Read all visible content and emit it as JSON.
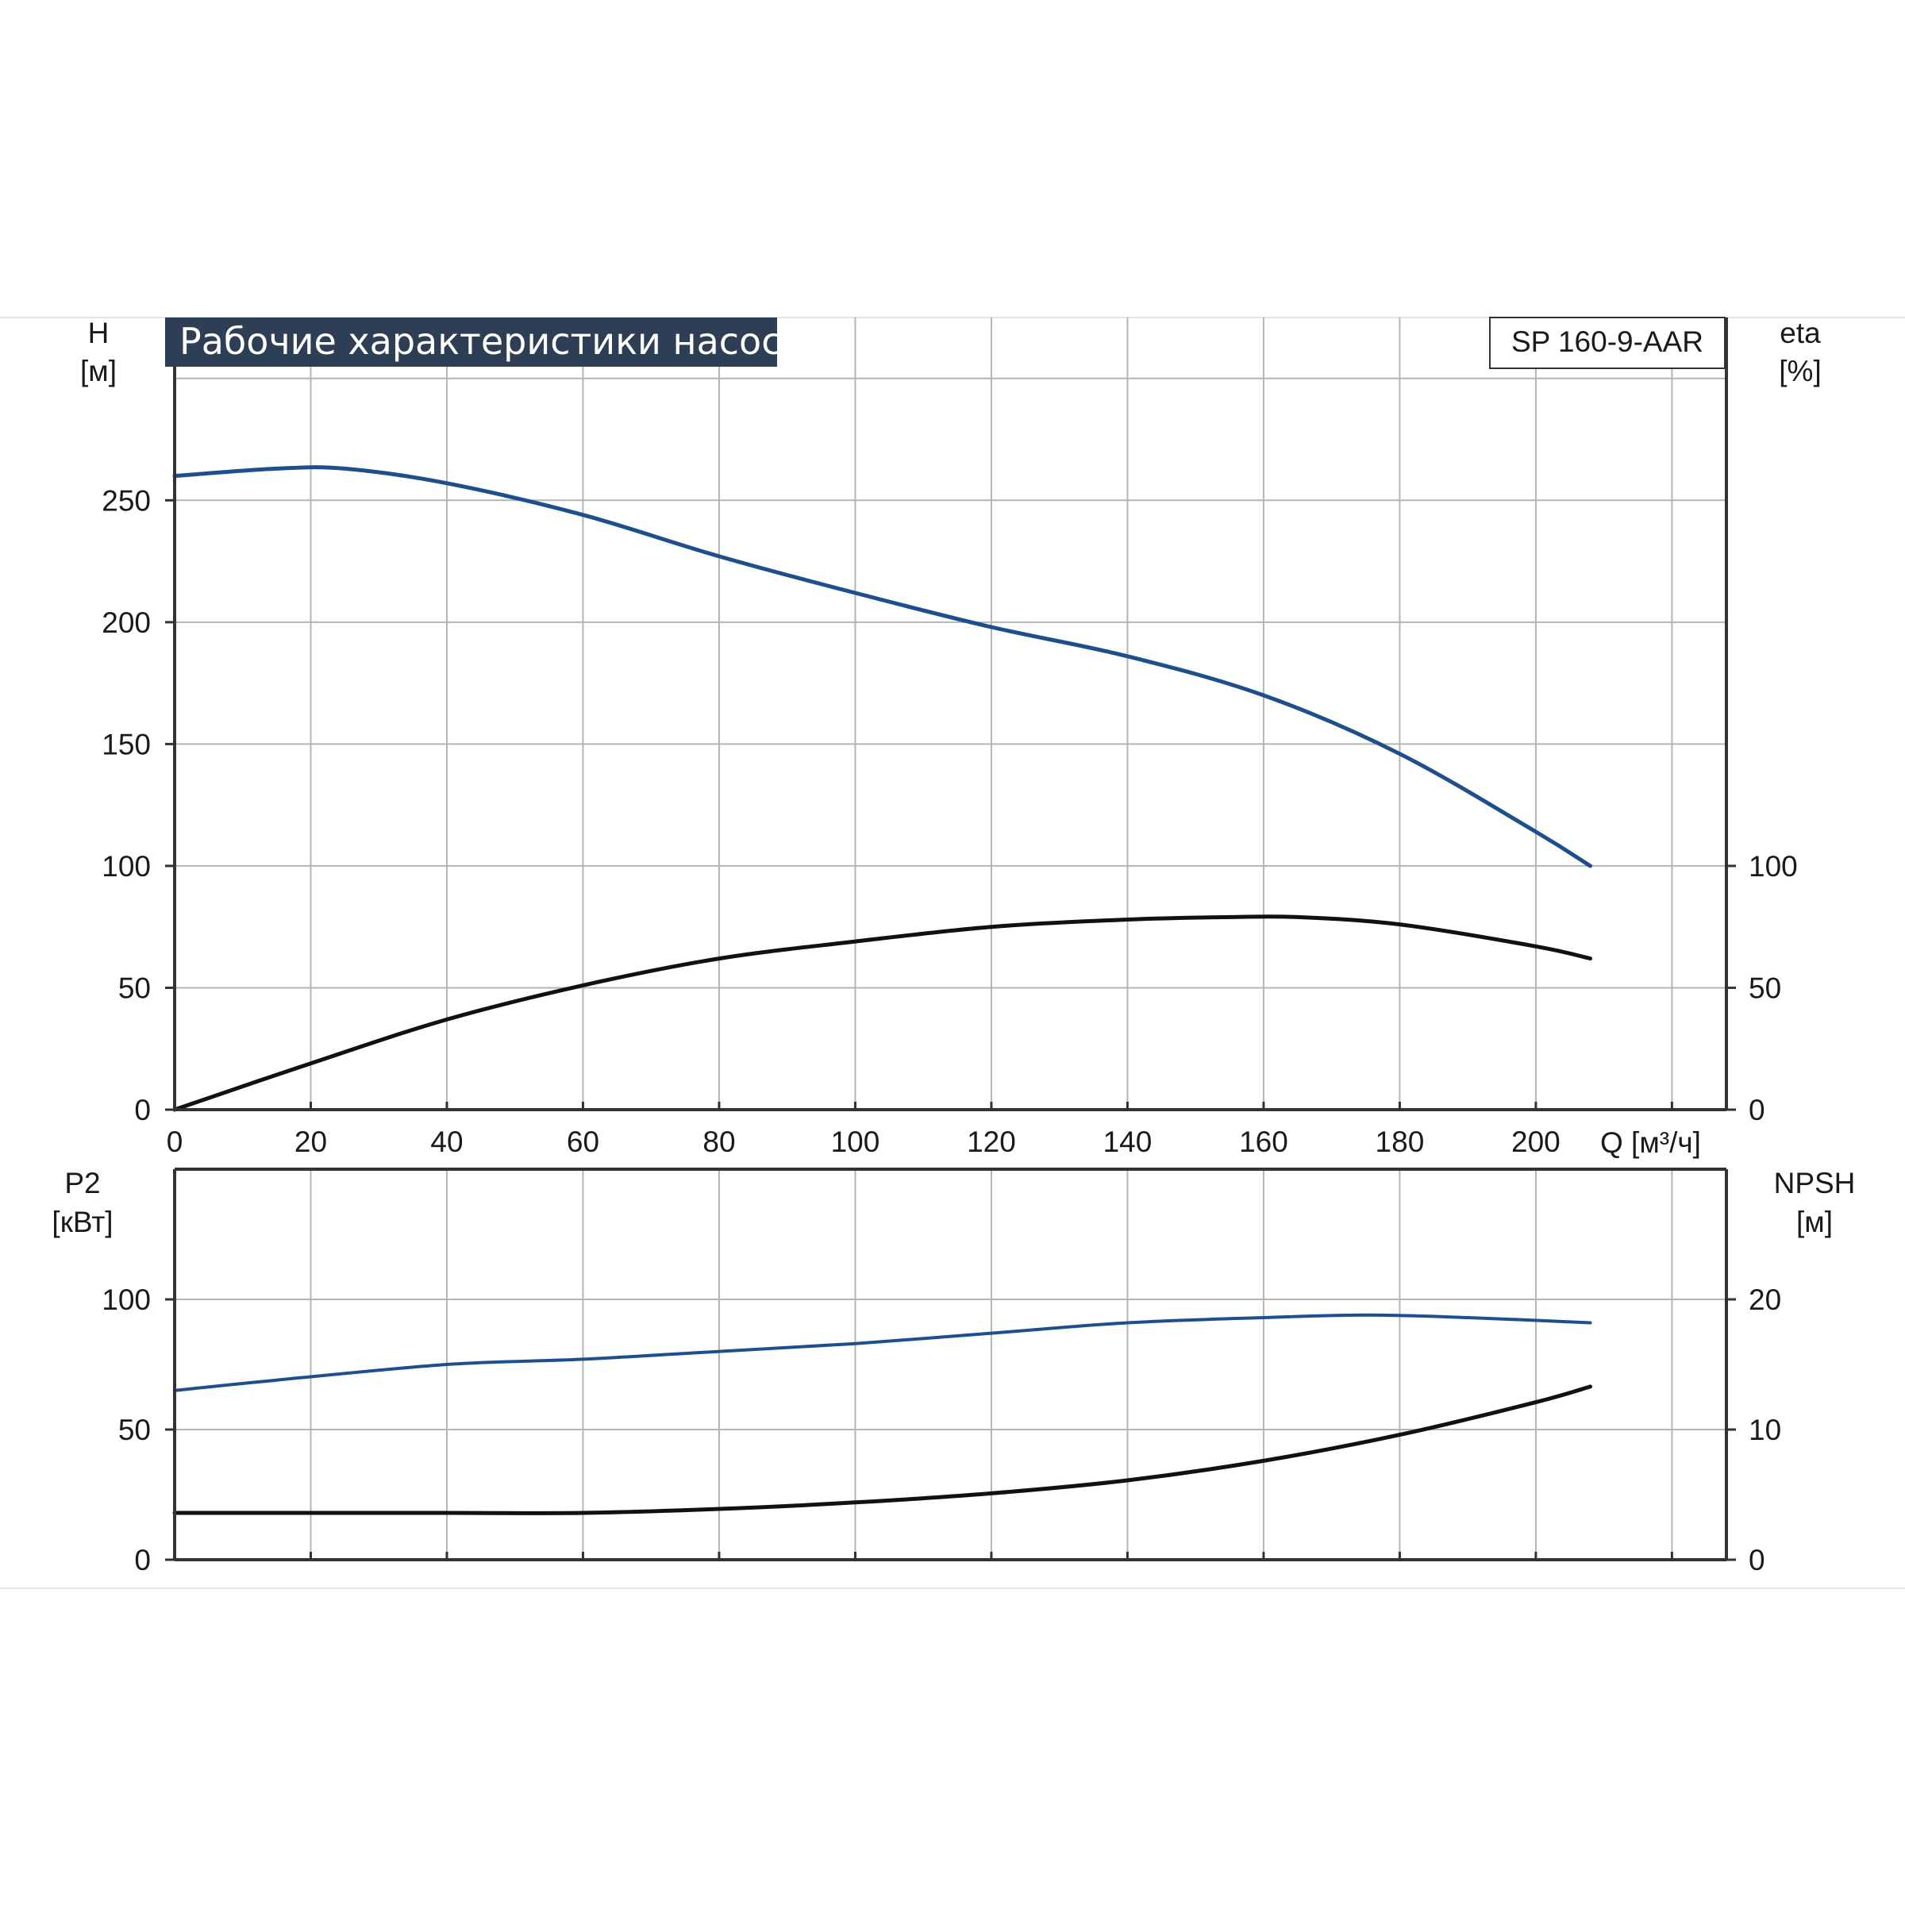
{
  "title": "Рабочие характеристики насоса",
  "model": "SP 160-9-AAR",
  "colors": {
    "title_bg": "#2e3e55",
    "grid": "#b4b4b4",
    "axis": "#333333",
    "blue_curve": "#1f4e8c",
    "black_curve": "#111111",
    "page_rule": "#e2e2e2"
  },
  "x_axis": {
    "label": "Q [м³/ч]",
    "range": [
      0,
      228
    ],
    "ticks": [
      0,
      20,
      40,
      60,
      80,
      100,
      120,
      140,
      160,
      180,
      200
    ]
  },
  "upper_chart": {
    "left_axis": {
      "label_line1": "H",
      "label_line2": "[м]",
      "range": [
        0,
        325
      ],
      "ticks": [
        0,
        50,
        100,
        150,
        200,
        250
      ]
    },
    "right_axis": {
      "label_line1": "eta",
      "label_line2": "[%]",
      "range": [
        0,
        325
      ],
      "ticks": [
        0,
        50,
        100
      ]
    }
  },
  "lower_chart": {
    "left_axis": {
      "label_line1": "P2",
      "label_line2": "[кВт]",
      "range": [
        0,
        150
      ],
      "ticks": [
        0,
        50,
        100
      ]
    },
    "right_axis": {
      "label_line1": "NPSH",
      "label_line2": "[м]",
      "range": [
        0,
        30
      ],
      "ticks": [
        0,
        10,
        20
      ]
    }
  },
  "chart_data": [
    {
      "type": "line",
      "title": "Рабочие характеристики насоса",
      "xlabel": "Q [м³/ч]",
      "ylabel": "H [м]",
      "y2label": "eta [%]",
      "xlim": [
        0,
        228
      ],
      "ylim": [
        0,
        325
      ],
      "y2lim": [
        0,
        325
      ],
      "grid": true,
      "series": [
        {
          "name": "H",
          "axis": "left",
          "color": "#1f4e8c",
          "points": [
            [
              0,
              260
            ],
            [
              15,
              263
            ],
            [
              25,
              263
            ],
            [
              40,
              257
            ],
            [
              60,
              244
            ],
            [
              80,
              227
            ],
            [
              100,
              212
            ],
            [
              120,
              198
            ],
            [
              140,
              186
            ],
            [
              160,
              170
            ],
            [
              180,
              146
            ],
            [
              200,
              114
            ],
            [
              208,
              100
            ]
          ]
        },
        {
          "name": "eta",
          "axis": "right",
          "color": "#111111",
          "points": [
            [
              0,
              0
            ],
            [
              20,
              19
            ],
            [
              40,
              37
            ],
            [
              60,
              51
            ],
            [
              80,
              62
            ],
            [
              100,
              69
            ],
            [
              120,
              75
            ],
            [
              140,
              78
            ],
            [
              155,
              79
            ],
            [
              165,
              79
            ],
            [
              180,
              76
            ],
            [
              200,
              67
            ],
            [
              208,
              62
            ]
          ]
        }
      ]
    },
    {
      "type": "line",
      "xlabel": "Q [м³/ч]",
      "ylabel": "P2 [кВт]",
      "y2label": "NPSH [м]",
      "xlim": [
        0,
        228
      ],
      "ylim": [
        0,
        150
      ],
      "y2lim": [
        0,
        30
      ],
      "grid": true,
      "series": [
        {
          "name": "P2",
          "axis": "left",
          "color": "#1f4e8c",
          "points": [
            [
              0,
              65
            ],
            [
              15,
              69
            ],
            [
              40,
              75
            ],
            [
              60,
              77
            ],
            [
              80,
              80
            ],
            [
              100,
              83
            ],
            [
              120,
              87
            ],
            [
              140,
              91
            ],
            [
              160,
              93
            ],
            [
              175,
              94
            ],
            [
              190,
              93
            ],
            [
              208,
              91
            ]
          ]
        },
        {
          "name": "NPSH",
          "axis": "right",
          "color": "#111111",
          "points": [
            [
              0,
              3.6
            ],
            [
              15,
              3.6
            ],
            [
              40,
              3.6
            ],
            [
              60,
              3.6
            ],
            [
              80,
              3.9
            ],
            [
              100,
              4.4
            ],
            [
              120,
              5.1
            ],
            [
              140,
              6.1
            ],
            [
              160,
              7.6
            ],
            [
              180,
              9.6
            ],
            [
              200,
              12.1
            ],
            [
              208,
              13.3
            ]
          ]
        }
      ]
    }
  ]
}
